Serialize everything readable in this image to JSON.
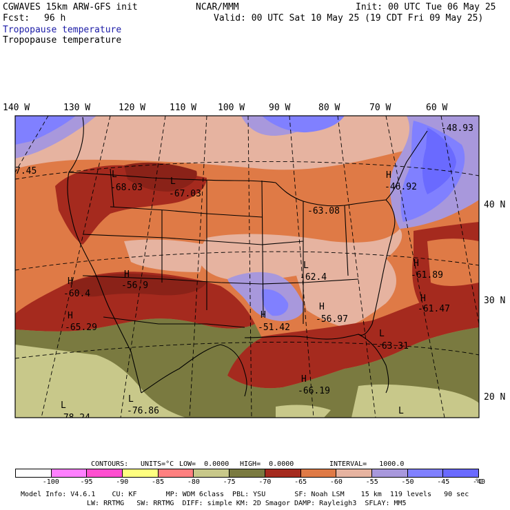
{
  "header": {
    "model": "CGWAVES 15km ARW-GFS init",
    "fcst_label": "Fcst:",
    "fcst_value": "96 h",
    "center": "NCAR/MMM",
    "init": "Init: 00 UTC Tue 06 May 25",
    "valid": "Valid: 00 UTC Sat 10 May 25 (19 CDT Fri 09 May 25)",
    "field_blue": "Tropopause temperature",
    "field_black": "Tropopause temperature"
  },
  "axes": {
    "longitudes": [
      "140 W",
      "130 W",
      "120 W",
      "110 W",
      "100 W",
      "90 W",
      "80 W",
      "70 W",
      "60 W"
    ],
    "latitudes": [
      "40 N",
      "30 N",
      "20 N"
    ]
  },
  "labels": [
    {
      "value": "7.45"
    },
    {
      "symbol": "L",
      "value": "-68.03"
    },
    {
      "symbol": "L",
      "value": "-67.03"
    },
    {
      "value": "-63.08"
    },
    {
      "symbol": "H",
      "value": "-46.92"
    },
    {
      "value": "-48.93"
    },
    {
      "symbol": "H",
      "value": "-60.4"
    },
    {
      "symbol": "H",
      "value": "-56.9"
    },
    {
      "symbol": "L",
      "value": "-62.4"
    },
    {
      "symbol": "H",
      "value": "-61.89"
    },
    {
      "symbol": "H",
      "value": "-65.29"
    },
    {
      "symbol": "H",
      "value": "-56.97"
    },
    {
      "symbol": "H",
      "value": "-51.42"
    },
    {
      "symbol": "H",
      "value": "-61.47"
    },
    {
      "symbol": "L",
      "value": "-63.31"
    },
    {
      "symbol": "H",
      "value": "-66.19"
    },
    {
      "symbol": "L",
      "value": "-76.86"
    },
    {
      "symbol": "L",
      "value": "-78.24"
    },
    {
      "symbol": "L",
      "value": ""
    }
  ],
  "contours_info": {
    "contours": "CONTOURS:",
    "units": "UNITS=°C",
    "low": "LOW=  0.0000",
    "high": "HIGH=  0.0000",
    "interval": "INTERVAL=   1000.0"
  },
  "legend": {
    "colors": [
      "#ffffff",
      "#ff80ff",
      "#ff4fd0",
      "#ffff80",
      "#ff8080",
      "#c8c88a",
      "#7a7a40",
      "#a52a1e",
      "#df7a46",
      "#e6b3a0",
      "#a898dc",
      "#8080ff",
      "#6a6aff"
    ],
    "ticks": [
      "-100",
      "-95",
      "-90",
      "-85",
      "-80",
      "-75",
      "-70",
      "-65",
      "-60",
      "-55",
      "-50",
      "-45",
      "-40",
      "°C"
    ]
  },
  "footer": {
    "line1": "Model Info: V4.6.1    CU: KF       MP: WDM 6class  PBL: YSU       SF: Noah LSM    15 km  119 levels   90 sec",
    "line2": "LW: RRTMG   SW: RRTMG  DIFF: simple KM: 2D Smagor DAMP: Rayleigh3  SFLAY: MM5"
  }
}
